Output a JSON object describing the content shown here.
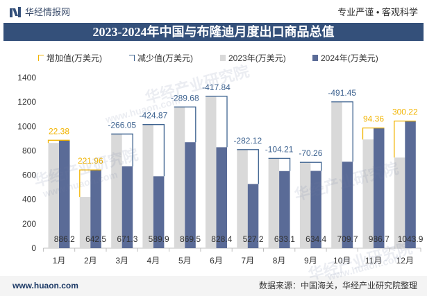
{
  "header": {
    "logo_icon": "huaon-logo-icon",
    "brand": "华经情报网",
    "slogan": "专业严谨 • 客观科学"
  },
  "chart_data": {
    "type": "bar",
    "title": "2023-2024年中国与布隆迪月度出口商品总值",
    "categories": [
      "1月",
      "2月",
      "3月",
      "4月",
      "5月",
      "6月",
      "7月",
      "8月",
      "9月",
      "10月",
      "11月",
      "12月"
    ],
    "series": [
      {
        "name": "2023年(万美元)",
        "color": "#d9d9d9",
        "values": [
          863.82,
          420.54,
          937.35,
          1014.77,
          1159.18,
          1246.24,
          809.32,
          737.31,
          704.66,
          1201.15,
          892.34,
          743.68
        ]
      },
      {
        "name": "2024年(万美元)",
        "color": "#5a6b97",
        "values": [
          886.2,
          642.5,
          671.3,
          589.9,
          869.5,
          828.4,
          527.2,
          633.1,
          634.4,
          709.7,
          986.7,
          1043.9
        ]
      }
    ],
    "change": {
      "increase_name": "增加值(万美元)",
      "increase_color": "#f2b400",
      "decrease_name": "减少值(万美元)",
      "decrease_color": "#3e6390",
      "values": [
        22.38,
        221.96,
        -266.05,
        -424.87,
        -289.68,
        -417.84,
        -282.12,
        -104.21,
        -70.26,
        -491.45,
        94.36,
        300.22
      ]
    },
    "ylim": [
      0,
      1400
    ],
    "y_ticks": [
      0,
      200,
      400,
      600,
      800,
      1000,
      1200,
      1400
    ],
    "grid": false,
    "legend_position": "top"
  },
  "watermark": {
    "brand": "华经产业研究院",
    "url": "www.huaon.com"
  },
  "footer": {
    "website": "www.huaon.com",
    "source": "数据来源：中国海关，华经产业研究院整理"
  },
  "colors": {
    "title_bar": "#34507a",
    "footer_bg": "#f4f4f4"
  }
}
